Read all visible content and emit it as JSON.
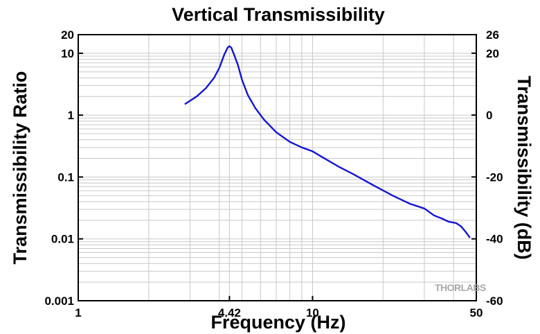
{
  "chart_data": {
    "type": "line",
    "title": "Vertical Transmissibility",
    "xlabel": "Frequency (Hz)",
    "ylabel": "Transmissibility Ratio",
    "y2label": "Transmissibility (dB)",
    "x_scale": "log",
    "y_scale": "log",
    "xlim": [
      1,
      50
    ],
    "ylim": [
      0.001,
      20
    ],
    "y2lim": [
      -60,
      26
    ],
    "x_ticks": [
      1,
      4.42,
      10,
      50
    ],
    "y_ticks": [
      0.001,
      0.01,
      0.1,
      1,
      10,
      20
    ],
    "y2_ticks": [
      -60,
      -40,
      -20,
      0,
      20,
      26
    ],
    "grid": true,
    "series": [
      {
        "color": "#1414d2",
        "x": [
          2.85,
          3.2,
          3.5,
          3.8,
          4.0,
          4.2,
          4.35,
          4.42,
          4.5,
          4.65,
          4.8,
          5.0,
          5.3,
          5.7,
          6.2,
          7.0,
          8.0,
          9.0,
          10.0,
          11.0,
          13.0,
          15.0,
          18.0,
          22.0,
          26.0,
          30.0,
          33.0,
          36.0,
          38.0,
          41.0,
          43.0,
          45.0,
          47.0
        ],
        "y": [
          1.5,
          2.0,
          2.7,
          4.0,
          5.8,
          9.5,
          12.5,
          13.0,
          12.3,
          9.0,
          6.5,
          3.7,
          2.1,
          1.3,
          0.85,
          0.53,
          0.37,
          0.3,
          0.26,
          0.21,
          0.145,
          0.11,
          0.075,
          0.05,
          0.037,
          0.031,
          0.024,
          0.021,
          0.019,
          0.018,
          0.016,
          0.013,
          0.0104
        ]
      }
    ]
  },
  "watermark": "THORLABS"
}
